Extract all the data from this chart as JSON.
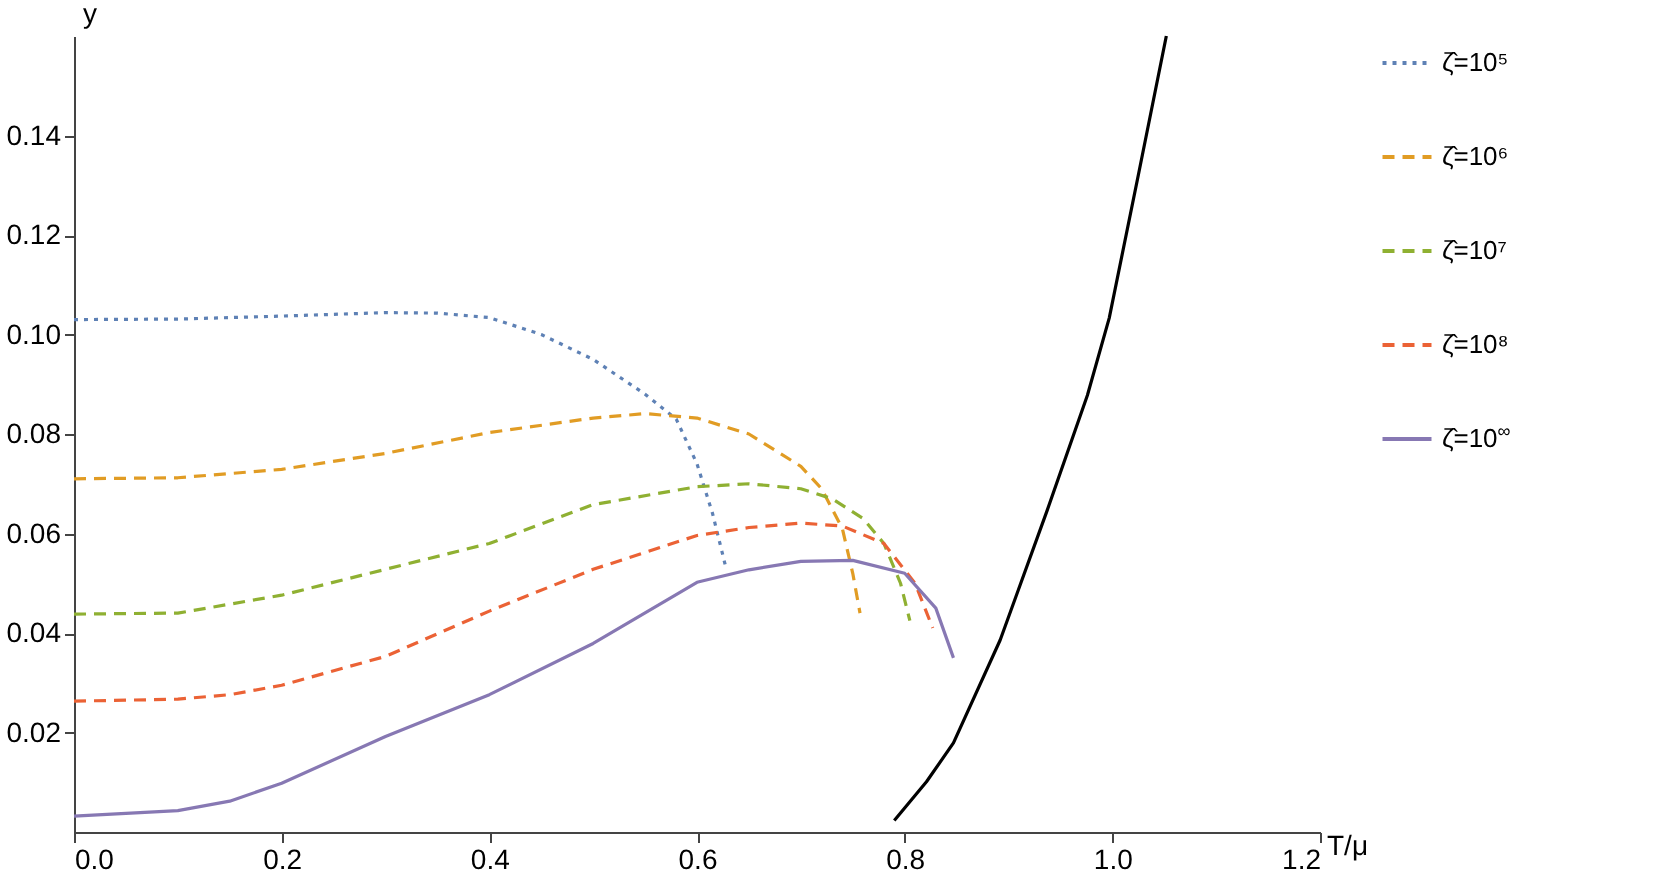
{
  "chart_data": {
    "type": "line",
    "xlabel": "T/μ",
    "ylabel": "y",
    "xlim": [
      0,
      1.2
    ],
    "ylim": [
      0,
      0.16
    ],
    "xticks": [
      {
        "value": 0,
        "label": "0.0"
      },
      0.2,
      0.4,
      0.6,
      0.8,
      {
        "value": 1,
        "label": "1.0"
      },
      1.2
    ],
    "yticks": [
      0.02,
      0.04,
      0.06,
      0.08,
      {
        "value": 0.1,
        "label": "0.10"
      },
      0.12,
      0.14
    ],
    "grid": false,
    "legend": "right",
    "series": [
      {
        "name": "ζ̂=10⁵",
        "color": "#5e81b5",
        "line_style": "dotted",
        "x": [
          0,
          0.1,
          0.2,
          0.3,
          0.35,
          0.4,
          0.45,
          0.5,
          0.55,
          0.58,
          0.6,
          0.615,
          0.628
        ],
        "values": [
          0.103,
          0.1031,
          0.1037,
          0.1044,
          0.1043,
          0.1034,
          0.1,
          0.095,
          0.088,
          0.083,
          0.074,
          0.064,
          0.053
        ]
      },
      {
        "name": "ζ̂=10⁶",
        "color": "#e19c24",
        "line_style": "dashed",
        "x": [
          0,
          0.1,
          0.2,
          0.3,
          0.4,
          0.5,
          0.55,
          0.6,
          0.65,
          0.7,
          0.72,
          0.74,
          0.75,
          0.757
        ],
        "values": [
          0.071,
          0.0712,
          0.0729,
          0.0761,
          0.0803,
          0.0832,
          0.0841,
          0.0832,
          0.08,
          0.0735,
          0.069,
          0.061,
          0.052,
          0.044
        ]
      },
      {
        "name": "ζ̂=10⁷",
        "color": "#8fb032",
        "line_style": "dashed",
        "x": [
          0,
          0.1,
          0.2,
          0.3,
          0.4,
          0.5,
          0.6,
          0.65,
          0.7,
          0.73,
          0.76,
          0.78,
          0.796,
          0.805
        ],
        "values": [
          0.0438,
          0.044,
          0.0476,
          0.0528,
          0.058,
          0.0658,
          0.0694,
          0.07,
          0.069,
          0.067,
          0.063,
          0.058,
          0.05,
          0.0425
        ]
      },
      {
        "name": "ζ̂=10⁸",
        "color": "#eb6235",
        "line_style": "dashed",
        "x": [
          0,
          0.1,
          0.15,
          0.2,
          0.3,
          0.4,
          0.5,
          0.6,
          0.65,
          0.7,
          0.74,
          0.78,
          0.81,
          0.827
        ],
        "values": [
          0.0263,
          0.0267,
          0.0276,
          0.0295,
          0.0353,
          0.0444,
          0.0528,
          0.0596,
          0.0612,
          0.0621,
          0.0615,
          0.058,
          0.05,
          0.041
        ]
      },
      {
        "name": "ζ̂=10$^{∞}$",
        "color": "#8778b3",
        "line_style": "solid",
        "x": [
          0,
          0.1,
          0.15,
          0.2,
          0.3,
          0.4,
          0.5,
          0.6,
          0.65,
          0.7,
          0.75,
          0.8,
          0.83,
          0.847
        ],
        "values": [
          0.0032,
          0.0043,
          0.0062,
          0.0098,
          0.0192,
          0.0276,
          0.0379,
          0.0502,
          0.0527,
          0.0544,
          0.0546,
          0.052,
          0.045,
          0.035
        ]
      },
      {
        "color": "#000000",
        "line_style": "solid",
        "x": [
          0.79,
          0.821,
          0.847,
          0.892,
          0.937,
          0.976,
          0.997,
          1.025,
          1.052
        ],
        "values": [
          0.0023,
          0.0101,
          0.0179,
          0.0386,
          0.0645,
          0.0878,
          0.1033,
          0.132,
          0.16
        ]
      }
    ]
  }
}
